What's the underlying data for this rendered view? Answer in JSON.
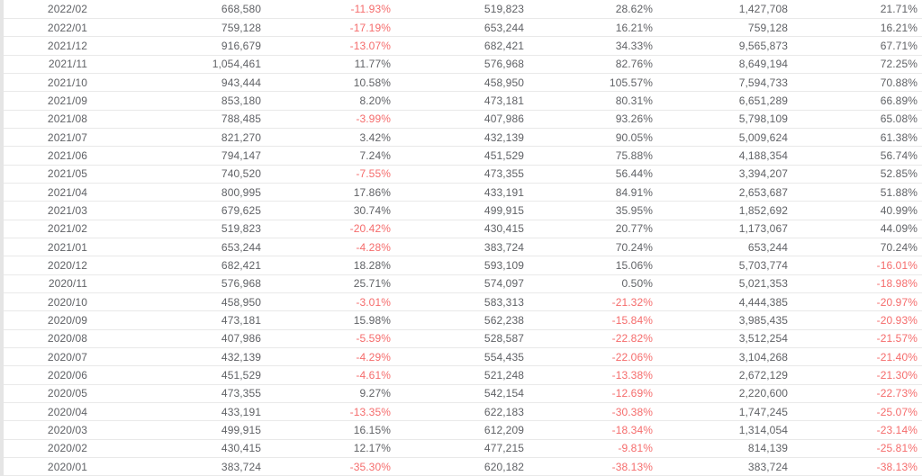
{
  "colors": {
    "text": "#606266",
    "negative": "#f56c6c",
    "row_border": "#e9e9e9",
    "background": "#ffffff",
    "left_strip": "#e5e5e5"
  },
  "table": {
    "visible_header": false,
    "rows": [
      [
        "2022/02",
        "668,580",
        "-11.93%",
        "519,823",
        "28.62%",
        "1,427,708",
        "21.71%"
      ],
      [
        "2022/01",
        "759,128",
        "-17.19%",
        "653,244",
        "16.21%",
        "759,128",
        "16.21%"
      ],
      [
        "2021/12",
        "916,679",
        "-13.07%",
        "682,421",
        "34.33%",
        "9,565,873",
        "67.71%"
      ],
      [
        "2021/11",
        "1,054,461",
        "11.77%",
        "576,968",
        "82.76%",
        "8,649,194",
        "72.25%"
      ],
      [
        "2021/10",
        "943,444",
        "10.58%",
        "458,950",
        "105.57%",
        "7,594,733",
        "70.88%"
      ],
      [
        "2021/09",
        "853,180",
        "8.20%",
        "473,181",
        "80.31%",
        "6,651,289",
        "66.89%"
      ],
      [
        "2021/08",
        "788,485",
        "-3.99%",
        "407,986",
        "93.26%",
        "5,798,109",
        "65.08%"
      ],
      [
        "2021/07",
        "821,270",
        "3.42%",
        "432,139",
        "90.05%",
        "5,009,624",
        "61.38%"
      ],
      [
        "2021/06",
        "794,147",
        "7.24%",
        "451,529",
        "75.88%",
        "4,188,354",
        "56.74%"
      ],
      [
        "2021/05",
        "740,520",
        "-7.55%",
        "473,355",
        "56.44%",
        "3,394,207",
        "52.85%"
      ],
      [
        "2021/04",
        "800,995",
        "17.86%",
        "433,191",
        "84.91%",
        "2,653,687",
        "51.88%"
      ],
      [
        "2021/03",
        "679,625",
        "30.74%",
        "499,915",
        "35.95%",
        "1,852,692",
        "40.99%"
      ],
      [
        "2021/02",
        "519,823",
        "-20.42%",
        "430,415",
        "20.77%",
        "1,173,067",
        "44.09%"
      ],
      [
        "2021/01",
        "653,244",
        "-4.28%",
        "383,724",
        "70.24%",
        "653,244",
        "70.24%"
      ],
      [
        "2020/12",
        "682,421",
        "18.28%",
        "593,109",
        "15.06%",
        "5,703,774",
        "-16.01%"
      ],
      [
        "2020/11",
        "576,968",
        "25.71%",
        "574,097",
        "0.50%",
        "5,021,353",
        "-18.98%"
      ],
      [
        "2020/10",
        "458,950",
        "-3.01%",
        "583,313",
        "-21.32%",
        "4,444,385",
        "-20.97%"
      ],
      [
        "2020/09",
        "473,181",
        "15.98%",
        "562,238",
        "-15.84%",
        "3,985,435",
        "-20.93%"
      ],
      [
        "2020/08",
        "407,986",
        "-5.59%",
        "528,587",
        "-22.82%",
        "3,512,254",
        "-21.57%"
      ],
      [
        "2020/07",
        "432,139",
        "-4.29%",
        "554,435",
        "-22.06%",
        "3,104,268",
        "-21.40%"
      ],
      [
        "2020/06",
        "451,529",
        "-4.61%",
        "521,248",
        "-13.38%",
        "2,672,129",
        "-21.30%"
      ],
      [
        "2020/05",
        "473,355",
        "9.27%",
        "542,154",
        "-12.69%",
        "2,220,600",
        "-22.73%"
      ],
      [
        "2020/04",
        "433,191",
        "-13.35%",
        "622,183",
        "-30.38%",
        "1,747,245",
        "-25.07%"
      ],
      [
        "2020/03",
        "499,915",
        "16.15%",
        "612,209",
        "-18.34%",
        "1,314,054",
        "-23.14%"
      ],
      [
        "2020/02",
        "430,415",
        "12.17%",
        "477,215",
        "-9.81%",
        "814,139",
        "-25.81%"
      ],
      [
        "2020/01",
        "383,724",
        "-35.30%",
        "620,182",
        "-38.13%",
        "383,724",
        "-38.13%"
      ]
    ]
  }
}
